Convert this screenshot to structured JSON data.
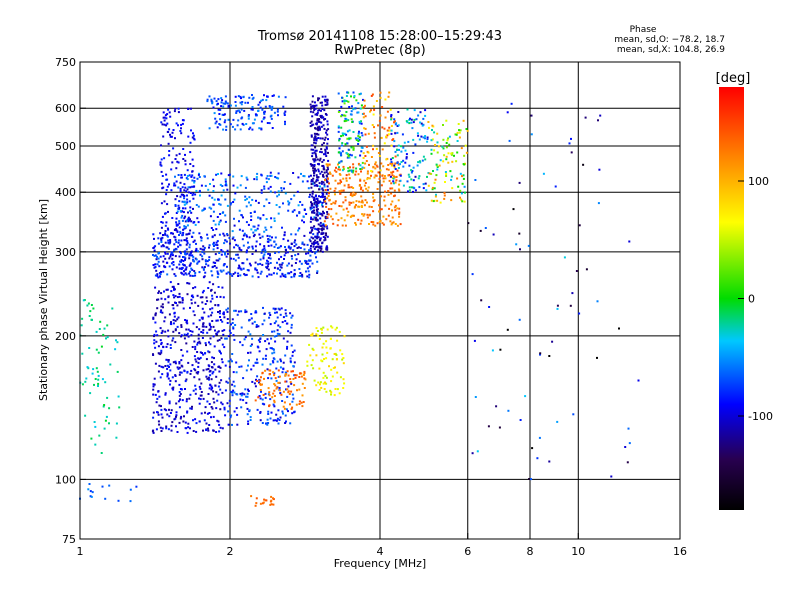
{
  "chart_data": {
    "type": "scatter",
    "title": "Tromsø 20141108 15:28:00–15:29:43",
    "subtitle": "RwPretec (8p)",
    "xlabel": "Frequency [MHz]",
    "ylabel": "Stationary phase Virtual Height [km]",
    "x_scale": "log",
    "y_scale": "log",
    "xlim": [
      1,
      16
    ],
    "ylim": [
      75,
      750
    ],
    "x_ticks": [
      1,
      2,
      4,
      6,
      8,
      10,
      16
    ],
    "y_ticks": [
      75,
      100,
      200,
      300,
      400,
      500,
      600,
      750
    ],
    "grid_x": [
      2,
      4,
      6,
      8,
      10
    ],
    "grid_y": [
      100,
      200,
      300,
      400,
      500,
      600
    ],
    "grid": true,
    "stats_title": "Phase",
    "stats_lines": [
      "mean, sd,O: −78.2, 18.7",
      "mean, sd,X: 104.8, 26.9"
    ],
    "colorbar": {
      "label": "[deg]",
      "range": [
        -180,
        180
      ],
      "ticks": [
        100,
        0,
        -100
      ],
      "colormap": "rainbow"
    },
    "clusters": [
      {
        "x": [
          1.4,
          1.95
        ],
        "y": [
          125,
          260
        ],
        "phase": -100,
        "spread": 20,
        "n": 520
      },
      {
        "x": [
          1.95,
          2.7
        ],
        "y": [
          130,
          230
        ],
        "phase": -80,
        "spread": 25,
        "n": 300
      },
      {
        "x": [
          2.25,
          2.85
        ],
        "y": [
          140,
          170
        ],
        "phase": 130,
        "spread": 20,
        "n": 90
      },
      {
        "x": [
          2.85,
          3.4
        ],
        "y": [
          150,
          210
        ],
        "phase": 65,
        "spread": 20,
        "n": 90
      },
      {
        "x": [
          1.45,
          1.7
        ],
        "y": [
          270,
          600
        ],
        "phase": -95,
        "spread": 15,
        "n": 220
      },
      {
        "x": [
          1.4,
          3.0
        ],
        "y": [
          265,
          330
        ],
        "phase": -85,
        "spread": 25,
        "n": 480
      },
      {
        "x": [
          1.55,
          3.1
        ],
        "y": [
          330,
          440
        ],
        "phase": -70,
        "spread": 30,
        "n": 300
      },
      {
        "x": [
          2.9,
          3.15
        ],
        "y": [
          300,
          640
        ],
        "phase": -110,
        "spread": 15,
        "n": 380
      },
      {
        "x": [
          1.8,
          2.6
        ],
        "y": [
          540,
          640
        ],
        "phase": -75,
        "spread": 25,
        "n": 150
      },
      {
        "x": [
          3.1,
          4.4
        ],
        "y": [
          340,
          460
        ],
        "phase": 125,
        "spread": 25,
        "n": 260
      },
      {
        "x": [
          3.3,
          3.7
        ],
        "y": [
          440,
          650
        ],
        "phase": -30,
        "spread": 60,
        "n": 140
      },
      {
        "x": [
          3.7,
          4.3
        ],
        "y": [
          420,
          650
        ],
        "phase": 110,
        "spread": 45,
        "n": 90
      },
      {
        "x": [
          4.2,
          5.0
        ],
        "y": [
          400,
          600
        ],
        "phase": -60,
        "spread": 50,
        "n": 120
      },
      {
        "x": [
          5.0,
          6.0
        ],
        "y": [
          380,
          570
        ],
        "phase": 40,
        "spread": 90,
        "n": 110
      },
      {
        "x": [
          1.0,
          1.2
        ],
        "y": [
          110,
          240
        ],
        "phase": -20,
        "spread": 15,
        "n": 70
      },
      {
        "x": [
          1.0,
          1.3
        ],
        "y": [
          90,
          98
        ],
        "phase": -60,
        "spread": 20,
        "n": 14
      },
      {
        "x": [
          2.2,
          2.5
        ],
        "y": [
          88,
          93
        ],
        "phase": 135,
        "spread": 10,
        "n": 18
      },
      {
        "x": [
          6.0,
          13.5
        ],
        "y": [
          100,
          620
        ],
        "phase": -110,
        "spread": 80,
        "n": 75
      }
    ]
  }
}
